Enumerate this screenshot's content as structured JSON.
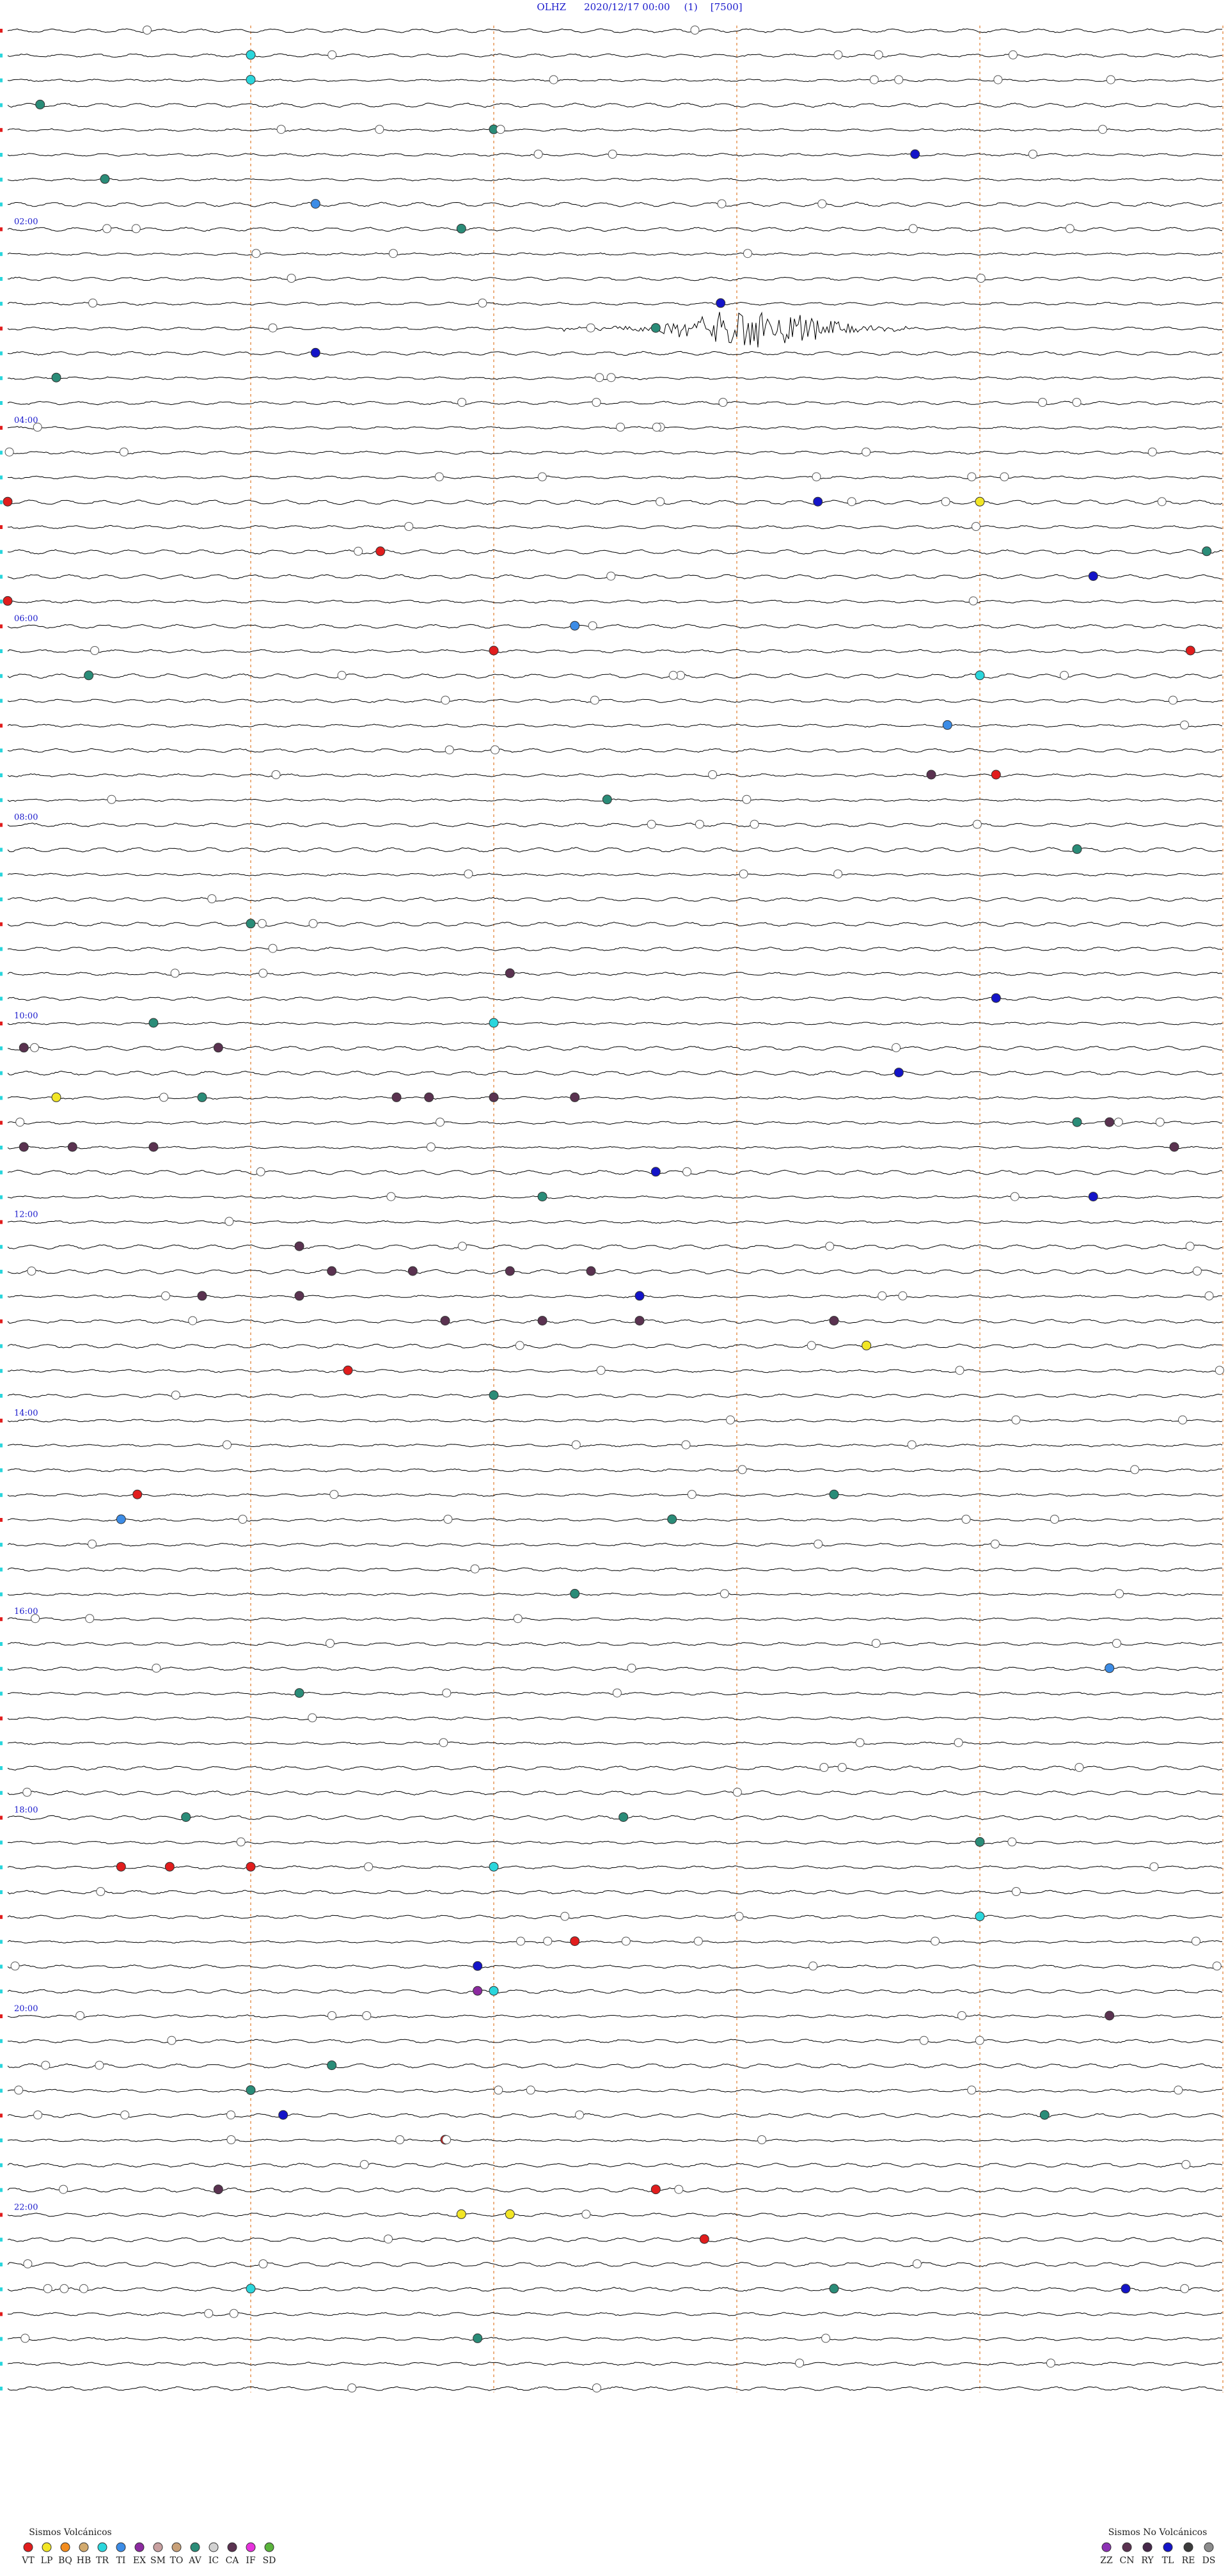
{
  "header": {
    "station": "OLHZ",
    "datetime": "2020/12/17 00:00",
    "page": "(1)",
    "scale": "[7500]"
  },
  "chart_data": {
    "type": "helicorder",
    "rows": 96,
    "minutes_per_row": 15,
    "row_ticks_minutes": [
      15,
      30,
      45,
      60,
      75
    ],
    "hour_labels": [
      "02:00",
      "04:00",
      "06:00",
      "08:00",
      "10:00",
      "12:00",
      "14:00",
      "16:00",
      "18:00",
      "20:00",
      "22:00"
    ],
    "hour_label_rows": [
      8,
      16,
      24,
      32,
      40,
      48,
      56,
      64,
      72,
      80,
      88
    ],
    "trace_color": "#000000",
    "tick_color": "#e07a2a",
    "event_window": {
      "row": 12,
      "start_min": 27,
      "end_min": 44,
      "label_color": "#1a1acc"
    },
    "events": [
      {
        "row": 1,
        "min": 15,
        "type": "TR"
      },
      {
        "row": 2,
        "min": 15,
        "type": "TR"
      },
      {
        "row": 3,
        "min": 2,
        "type": "AV"
      },
      {
        "row": 4,
        "min": 30,
        "type": "AV"
      },
      {
        "row": 5,
        "min": 56,
        "type": "TL"
      },
      {
        "row": 6,
        "min": 6,
        "type": "AV"
      },
      {
        "row": 7,
        "min": 19,
        "type": "TI"
      },
      {
        "row": 8,
        "min": 28,
        "type": "AV"
      },
      {
        "row": 11,
        "min": 44,
        "type": "TL"
      },
      {
        "row": 12,
        "min": 40,
        "type": "AV"
      },
      {
        "row": 13,
        "min": 19,
        "type": "TL"
      },
      {
        "row": 14,
        "min": 3,
        "type": "AV"
      },
      {
        "row": 19,
        "min": 0,
        "type": "VT"
      },
      {
        "row": 19,
        "min": 50,
        "type": "TL"
      },
      {
        "row": 19,
        "min": 60,
        "type": "LP"
      },
      {
        "row": 21,
        "min": 23,
        "type": "VT"
      },
      {
        "row": 21,
        "min": 74,
        "type": "AV"
      },
      {
        "row": 22,
        "min": 67,
        "type": "TL"
      },
      {
        "row": 23,
        "min": 0,
        "type": "VT"
      },
      {
        "row": 24,
        "min": 35,
        "type": "TI"
      },
      {
        "row": 25,
        "min": 30,
        "type": "VT"
      },
      {
        "row": 25,
        "min": 73,
        "type": "VT"
      },
      {
        "row": 26,
        "min": 60,
        "type": "TR"
      },
      {
        "row": 26,
        "min": 5,
        "type": "AV"
      },
      {
        "row": 28,
        "min": 58,
        "type": "TI"
      },
      {
        "row": 30,
        "min": 57,
        "type": "CA"
      },
      {
        "row": 30,
        "min": 61,
        "type": "VT"
      },
      {
        "row": 31,
        "min": 37,
        "type": "AV"
      },
      {
        "row": 33,
        "min": 66,
        "type": "AV"
      },
      {
        "row": 36,
        "min": 15,
        "type": "AV"
      },
      {
        "row": 38,
        "min": 31,
        "type": "CA"
      },
      {
        "row": 39,
        "min": 61,
        "type": "TL"
      },
      {
        "row": 40,
        "min": 9,
        "type": "AV"
      },
      {
        "row": 40,
        "min": 30,
        "type": "TR"
      },
      {
        "row": 41,
        "min": 1,
        "type": "CA"
      },
      {
        "row": 41,
        "min": 13,
        "type": "CA"
      },
      {
        "row": 42,
        "min": 55,
        "type": "TL"
      },
      {
        "row": 43,
        "min": 3,
        "type": "LP"
      },
      {
        "row": 43,
        "min": 12,
        "type": "AV"
      },
      {
        "row": 43,
        "min": 24,
        "type": "CA"
      },
      {
        "row": 43,
        "min": 26,
        "type": "CA"
      },
      {
        "row": 43,
        "min": 30,
        "type": "CA"
      },
      {
        "row": 43,
        "min": 35,
        "type": "CA"
      },
      {
        "row": 44,
        "min": 66,
        "type": "AV"
      },
      {
        "row": 44,
        "min": 68,
        "type": "CA"
      },
      {
        "row": 45,
        "min": 72,
        "type": "CA"
      },
      {
        "row": 45,
        "min": 1,
        "type": "CA"
      },
      {
        "row": 45,
        "min": 4,
        "type": "CA"
      },
      {
        "row": 45,
        "min": 9,
        "type": "CA"
      },
      {
        "row": 46,
        "min": 40,
        "type": "TL"
      },
      {
        "row": 47,
        "min": 33,
        "type": "AV"
      },
      {
        "row": 47,
        "min": 67,
        "type": "TL"
      },
      {
        "row": 49,
        "min": 18,
        "type": "CA"
      },
      {
        "row": 50,
        "min": 20,
        "type": "CA"
      },
      {
        "row": 50,
        "min": 25,
        "type": "CA"
      },
      {
        "row": 50,
        "min": 31,
        "type": "CA"
      },
      {
        "row": 50,
        "min": 36,
        "type": "CA"
      },
      {
        "row": 51,
        "min": 39,
        "type": "TL"
      },
      {
        "row": 51,
        "min": 12,
        "type": "CA"
      },
      {
        "row": 51,
        "min": 18,
        "type": "CA"
      },
      {
        "row": 52,
        "min": 27,
        "type": "CA"
      },
      {
        "row": 52,
        "min": 33,
        "type": "CA"
      },
      {
        "row": 52,
        "min": 39,
        "type": "CA"
      },
      {
        "row": 52,
        "min": 51,
        "type": "CA"
      },
      {
        "row": 53,
        "min": 53,
        "type": "LP"
      },
      {
        "row": 54,
        "min": 21,
        "type": "VT"
      },
      {
        "row": 55,
        "min": 30,
        "type": "AV"
      },
      {
        "row": 59,
        "min": 8,
        "type": "VT"
      },
      {
        "row": 59,
        "min": 51,
        "type": "AV"
      },
      {
        "row": 60,
        "min": 7,
        "type": "TI"
      },
      {
        "row": 60,
        "min": 41,
        "type": "AV"
      },
      {
        "row": 63,
        "min": 35,
        "type": "AV"
      },
      {
        "row": 66,
        "min": 68,
        "type": "TI"
      },
      {
        "row": 67,
        "min": 18,
        "type": "AV"
      },
      {
        "row": 72,
        "min": 11,
        "type": "AV"
      },
      {
        "row": 72,
        "min": 38,
        "type": "AV"
      },
      {
        "row": 73,
        "min": 60,
        "type": "AV"
      },
      {
        "row": 74,
        "min": 7,
        "type": "VT"
      },
      {
        "row": 74,
        "min": 10,
        "type": "VT"
      },
      {
        "row": 74,
        "min": 15,
        "type": "VT"
      },
      {
        "row": 74,
        "min": 30,
        "type": "TR"
      },
      {
        "row": 76,
        "min": 60,
        "type": "TR"
      },
      {
        "row": 77,
        "min": 35,
        "type": "VT"
      },
      {
        "row": 78,
        "min": 29,
        "type": "TL"
      },
      {
        "row": 79,
        "min": 30,
        "type": "TR"
      },
      {
        "row": 79,
        "min": 29,
        "type": "EX"
      },
      {
        "row": 80,
        "min": 68,
        "type": "CA"
      },
      {
        "row": 82,
        "min": 20,
        "type": "AV"
      },
      {
        "row": 83,
        "min": 15,
        "type": "AV"
      },
      {
        "row": 84,
        "min": 64,
        "type": "AV"
      },
      {
        "row": 84,
        "min": 17,
        "type": "TL"
      },
      {
        "row": 85,
        "min": 27,
        "type": "VT"
      },
      {
        "row": 87,
        "min": 13,
        "type": "CA"
      },
      {
        "row": 87,
        "min": 40,
        "type": "VT"
      },
      {
        "row": 88,
        "min": 28,
        "type": "LP"
      },
      {
        "row": 88,
        "min": 31,
        "type": "LP"
      },
      {
        "row": 89,
        "min": 43,
        "type": "VT"
      },
      {
        "row": 91,
        "min": 69,
        "type": "TL"
      },
      {
        "row": 91,
        "min": 51,
        "type": "AV"
      },
      {
        "row": 91,
        "min": 15,
        "type": "TR"
      },
      {
        "row": 93,
        "min": 29,
        "type": "AV"
      }
    ],
    "legend_volcanic": {
      "title": "Sismos Volcánicos",
      "items": [
        {
          "code": "VT",
          "color": "#e11d1d"
        },
        {
          "code": "LP",
          "color": "#f2e626"
        },
        {
          "code": "BQ",
          "color": "#f28c1e"
        },
        {
          "code": "HB",
          "color": "#d2aa6e"
        },
        {
          "code": "TR",
          "color": "#2ad6dc"
        },
        {
          "code": "TI",
          "color": "#3c8ce6"
        },
        {
          "code": "EX",
          "color": "#8c2aa0"
        },
        {
          "code": "SM",
          "color": "#c8a0a0"
        },
        {
          "code": "TO",
          "color": "#c8a078"
        },
        {
          "code": "AV",
          "color": "#2a8c78"
        },
        {
          "code": "IC",
          "color": "#d2d2d2"
        },
        {
          "code": "CA",
          "color": "#5a3250"
        },
        {
          "code": "IF",
          "color": "#e632dc"
        },
        {
          "code": "SD",
          "color": "#5ab43c"
        }
      ]
    },
    "legend_nonvolcanic": {
      "title": "Sismos No Volcánicos",
      "items": [
        {
          "code": "ZZ",
          "color": "#8c32b4"
        },
        {
          "code": "CN",
          "color": "#5a3250"
        },
        {
          "code": "RY",
          "color": "#46284a"
        },
        {
          "code": "TL",
          "color": "#1414c8"
        },
        {
          "code": "RE",
          "color": "#3c3c3c"
        },
        {
          "code": "DS",
          "color": "#8c8c8c"
        }
      ]
    }
  }
}
